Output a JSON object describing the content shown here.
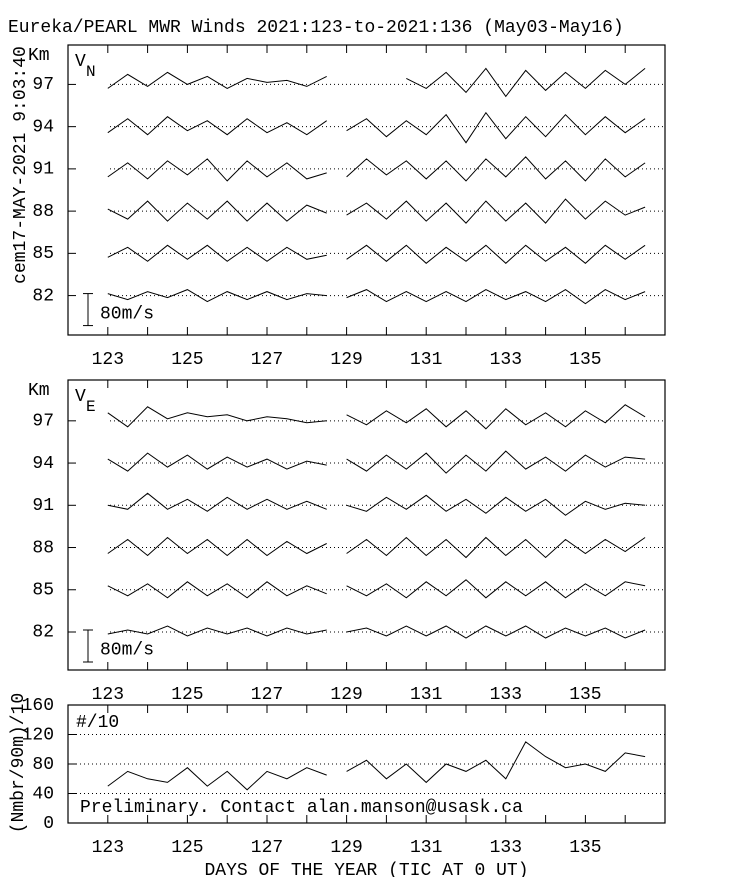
{
  "chart_data": [
    {
      "type": "line",
      "title": "Eureka/PEARL MWR Winds 2021:123-to-2021:136 (May03-May16)",
      "timestamp": "cem17-MAY-2021  9:03:40",
      "ylabel": "Km",
      "component": "V",
      "component_sub": "N",
      "color": "#000000",
      "grid": true,
      "xlim": [
        122,
        137
      ],
      "xticks": [
        123,
        125,
        127,
        129,
        131,
        133,
        135
      ],
      "ylim": [
        79.2,
        99.8
      ],
      "yticks": [
        82,
        85,
        88,
        91,
        94,
        97
      ],
      "scale_bar": {
        "value": 80,
        "label": "80m/s"
      },
      "x": [
        123,
        123.5,
        124,
        124.5,
        125,
        125.5,
        126,
        126.5,
        127,
        127.5,
        128,
        128.5,
        128.75,
        129,
        129.5,
        130,
        130.5,
        131,
        131.5,
        132,
        132.5,
        133,
        133.5,
        134,
        134.5,
        135,
        135.5,
        136,
        136.5
      ],
      "series": [
        {
          "altitude": 97,
          "values": [
            -10,
            25,
            -5,
            30,
            0,
            20,
            -10,
            15,
            5,
            10,
            -5,
            20,
            null,
            null,
            null,
            null,
            15,
            -10,
            30,
            -20,
            40,
            -30,
            35,
            -15,
            30,
            -10,
            35,
            0,
            40
          ]
        },
        {
          "altitude": 94,
          "values": [
            -15,
            20,
            -20,
            25,
            -10,
            15,
            -20,
            20,
            -15,
            10,
            -20,
            15,
            null,
            -10,
            20,
            -25,
            15,
            -20,
            30,
            -40,
            35,
            -30,
            25,
            -25,
            30,
            -20,
            25,
            -15,
            20
          ]
        },
        {
          "altitude": 91,
          "values": [
            -20,
            15,
            -25,
            20,
            -15,
            25,
            -30,
            20,
            -20,
            15,
            -25,
            -10,
            null,
            -20,
            25,
            -15,
            20,
            -25,
            20,
            -30,
            25,
            -20,
            30,
            -25,
            20,
            -30,
            25,
            -20,
            15
          ]
        },
        {
          "altitude": 88,
          "values": [
            5,
            -20,
            25,
            -25,
            20,
            -20,
            25,
            -25,
            20,
            -25,
            15,
            -5,
            null,
            -10,
            20,
            -20,
            25,
            -25,
            20,
            -30,
            25,
            -25,
            20,
            -30,
            30,
            -20,
            25,
            -10,
            10
          ]
        },
        {
          "altitude": 85,
          "values": [
            -10,
            15,
            -20,
            20,
            -15,
            20,
            -20,
            15,
            -20,
            15,
            -15,
            -5,
            null,
            -15,
            20,
            -20,
            20,
            -25,
            15,
            -20,
            20,
            -25,
            20,
            -20,
            15,
            -25,
            20,
            -15,
            20
          ]
        },
        {
          "altitude": 82,
          "values": [
            5,
            -10,
            10,
            -5,
            15,
            -15,
            10,
            -10,
            10,
            -10,
            5,
            0,
            null,
            -5,
            15,
            -15,
            10,
            -15,
            10,
            -15,
            15,
            -10,
            10,
            -15,
            15,
            -20,
            15,
            -10,
            10
          ]
        }
      ]
    },
    {
      "type": "line",
      "ylabel": "Km",
      "component": "V",
      "component_sub": "E",
      "color": "#000000",
      "grid": true,
      "xlim": [
        122,
        137
      ],
      "xticks": [
        123,
        125,
        127,
        129,
        131,
        133,
        135
      ],
      "ylim": [
        79.3,
        99.9
      ],
      "yticks": [
        82,
        85,
        88,
        91,
        94,
        97
      ],
      "scale_bar": {
        "value": 80,
        "label": "80m/s"
      },
      "x": [
        123,
        123.5,
        124,
        124.5,
        125,
        125.5,
        126,
        126.5,
        127,
        127.5,
        128,
        128.5,
        128.75,
        129,
        129.5,
        130,
        130.5,
        131,
        131.5,
        132,
        132.5,
        133,
        133.5,
        134,
        134.5,
        135,
        135.5,
        136,
        136.5
      ],
      "series": [
        {
          "altitude": 97,
          "values": [
            20,
            -15,
            35,
            5,
            20,
            10,
            15,
            0,
            10,
            5,
            -5,
            0,
            null,
            15,
            -10,
            25,
            -5,
            30,
            -15,
            25,
            -20,
            30,
            -10,
            20,
            -15,
            25,
            -5,
            40,
            10
          ]
        },
        {
          "altitude": 94,
          "values": [
            10,
            -20,
            25,
            -10,
            20,
            -15,
            15,
            -10,
            10,
            -15,
            5,
            -5,
            null,
            10,
            -20,
            20,
            -15,
            25,
            -25,
            20,
            -20,
            30,
            -15,
            15,
            -20,
            20,
            -10,
            15,
            10
          ]
        },
        {
          "altitude": 91,
          "values": [
            0,
            -10,
            30,
            -10,
            15,
            -15,
            20,
            -10,
            15,
            -10,
            10,
            -10,
            null,
            0,
            -15,
            20,
            -10,
            25,
            -15,
            15,
            -20,
            20,
            -15,
            15,
            -25,
            10,
            -10,
            5,
            0
          ]
        },
        {
          "altitude": 88,
          "values": [
            -15,
            20,
            -20,
            25,
            -15,
            20,
            -20,
            20,
            -20,
            15,
            -15,
            10,
            null,
            -15,
            20,
            -20,
            25,
            -20,
            20,
            -25,
            25,
            -20,
            20,
            -25,
            20,
            -15,
            20,
            -10,
            25
          ]
        },
        {
          "altitude": 85,
          "values": [
            10,
            -15,
            15,
            -20,
            20,
            -15,
            15,
            -20,
            20,
            -15,
            10,
            -10,
            null,
            10,
            -15,
            15,
            -20,
            20,
            -15,
            25,
            -20,
            20,
            -15,
            20,
            -20,
            15,
            -15,
            20,
            10
          ]
        },
        {
          "altitude": 82,
          "values": [
            -5,
            5,
            -5,
            15,
            -10,
            10,
            -5,
            10,
            -10,
            10,
            -5,
            5,
            null,
            0,
            10,
            -10,
            15,
            -10,
            15,
            -15,
            15,
            -10,
            15,
            -15,
            10,
            -10,
            10,
            -15,
            5
          ]
        }
      ]
    },
    {
      "type": "line",
      "ylabel": "(Nmbr/90m)/10",
      "panel_label": "#/10",
      "annotation": "Preliminary. Contact alan.manson@usask.ca",
      "xlabel": "DAYS OF THE YEAR (TIC AT 0 UT)",
      "color": "#000000",
      "grid": true,
      "xlim": [
        122,
        137
      ],
      "xticks": [
        123,
        125,
        127,
        129,
        131,
        133,
        135
      ],
      "ylim": [
        0,
        160
      ],
      "yticks": [
        0,
        40,
        80,
        120,
        160
      ],
      "x": [
        123,
        123.5,
        124,
        124.5,
        125,
        125.5,
        126,
        126.5,
        127,
        127.5,
        128,
        128.5,
        128.75,
        129,
        129.5,
        130,
        130.5,
        131,
        131.5,
        132,
        132.5,
        133,
        133.5,
        134,
        134.5,
        135,
        135.5,
        136,
        136.5
      ],
      "values": [
        50,
        70,
        60,
        55,
        75,
        50,
        70,
        45,
        70,
        60,
        75,
        65,
        null,
        70,
        85,
        60,
        80,
        55,
        80,
        70,
        85,
        60,
        110,
        90,
        75,
        80,
        70,
        95,
        90
      ]
    }
  ]
}
